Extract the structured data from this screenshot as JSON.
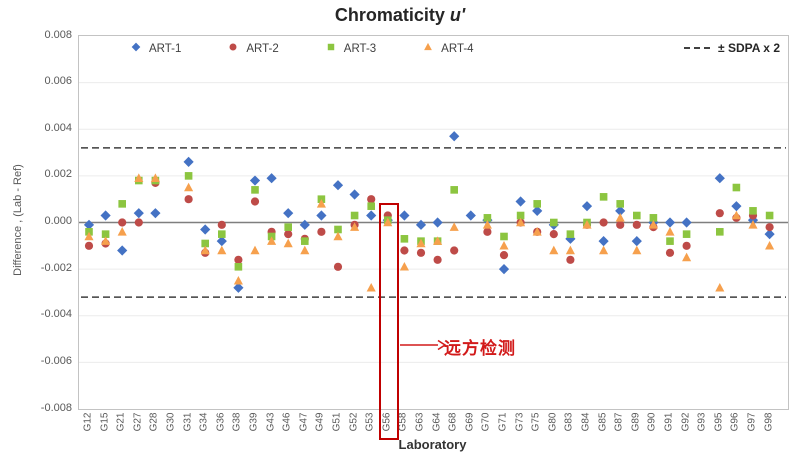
{
  "title": {
    "main": "Chromaticity",
    "suffix": "u'"
  },
  "legend": {
    "items": [
      {
        "label": "ART-1",
        "marker": "diamond",
        "color": "#4472C4"
      },
      {
        "label": "ART-2",
        "marker": "circle",
        "color": "#BE4B48"
      },
      {
        "label": "ART-3",
        "marker": "square",
        "color": "#8CC540"
      },
      {
        "label": "ART-4",
        "marker": "triangle",
        "color": "#F6A04D"
      }
    ],
    "sdpa_label": "± SDPA x 2"
  },
  "annotation": {
    "text": "远方检测",
    "highlighted_category": "G56",
    "text_color": "#D21A1A",
    "box_color": "#C00000"
  },
  "sdpa": {
    "value": 0.0032
  },
  "chart_data": {
    "type": "scatter",
    "title": "Chromaticity u'",
    "xlabel": "Laboratory",
    "ylabel": "Difference , (Lab - Ref)",
    "ylim": [
      -0.008,
      0.008
    ],
    "gridline_step": 0.002,
    "y_ticks": [
      "0.008",
      "0.006",
      "0.004",
      "0.002",
      "0.000",
      "-0.002",
      "-0.004",
      "-0.006",
      "-0.008"
    ],
    "reference_lines": {
      "zero": 0,
      "sdpa_upper": 0.0032,
      "sdpa_lower": -0.0032
    },
    "legend_position": "top-inside",
    "categories": [
      "G12",
      "G15",
      "G21",
      "G27",
      "G28",
      "G30",
      "G31",
      "G34",
      "G36",
      "G38",
      "G39",
      "G43",
      "G46",
      "G47",
      "G49",
      "G51",
      "G52",
      "G53",
      "G56",
      "G58",
      "G63",
      "G64",
      "G68",
      "G69",
      "G70",
      "G71",
      "G73",
      "G75",
      "G80",
      "G83",
      "G84",
      "G85",
      "G87",
      "G89",
      "G90",
      "G91",
      "G92",
      "G93",
      "G95",
      "G96",
      "G97",
      "G98"
    ],
    "series": [
      {
        "name": "ART-1",
        "marker": "diamond",
        "color": "#4472C4",
        "values": [
          -0.0001,
          0.0003,
          -0.0012,
          0.0004,
          0.0004,
          null,
          0.0026,
          -0.0003,
          -0.0008,
          -0.0028,
          0.0018,
          0.0019,
          0.0004,
          -0.0001,
          0.0003,
          0.0016,
          0.0012,
          0.0003,
          0.0001,
          0.0003,
          -0.0001,
          0.0,
          0.0037,
          0.0003,
          0.0001,
          -0.002,
          0.0009,
          0.0005,
          -0.0001,
          -0.0007,
          0.0007,
          -0.0008,
          0.0005,
          -0.0008,
          0.0,
          0.0,
          0.0,
          null,
          0.0019,
          0.0007,
          0.0001,
          -0.0005
        ]
      },
      {
        "name": "ART-2",
        "marker": "circle",
        "color": "#BE4B48",
        "values": [
          -0.001,
          -0.0009,
          0.0,
          0.0,
          0.0017,
          null,
          0.001,
          -0.0013,
          -0.0001,
          -0.0016,
          0.0009,
          -0.0004,
          -0.0005,
          -0.0007,
          -0.0004,
          -0.0019,
          -0.0001,
          0.001,
          0.0003,
          -0.0012,
          -0.0013,
          -0.0016,
          -0.0012,
          null,
          -0.0004,
          -0.0014,
          0.0,
          -0.0004,
          -0.0005,
          -0.0016,
          -0.0001,
          0.0,
          -0.0001,
          -0.0001,
          -0.0002,
          -0.0013,
          -0.001,
          null,
          0.0004,
          0.0002,
          0.0003,
          -0.0002
        ]
      },
      {
        "name": "ART-3",
        "marker": "square",
        "color": "#8CC540",
        "values": [
          -0.0004,
          -0.0005,
          0.0008,
          0.0018,
          0.0018,
          null,
          0.002,
          -0.0009,
          -0.0005,
          -0.0019,
          0.0014,
          -0.0006,
          -0.0002,
          -0.0008,
          0.001,
          -0.0003,
          0.0003,
          0.0007,
          0.0001,
          -0.0007,
          -0.0008,
          -0.0008,
          0.0014,
          null,
          0.0002,
          -0.0006,
          0.0003,
          0.0008,
          0.0,
          -0.0005,
          0.0,
          0.0011,
          0.0008,
          0.0003,
          0.0002,
          -0.0008,
          -0.0005,
          null,
          -0.0004,
          0.0015,
          0.0005,
          0.0003
        ]
      },
      {
        "name": "ART-4",
        "marker": "triangle",
        "color": "#F6A04D",
        "values": [
          -0.0006,
          -0.0008,
          -0.0004,
          0.0019,
          0.0019,
          null,
          0.0015,
          -0.0012,
          -0.0012,
          -0.0025,
          -0.0012,
          -0.0008,
          -0.0009,
          -0.0012,
          0.0008,
          -0.0006,
          -0.0002,
          -0.0028,
          0.0,
          -0.0019,
          -0.0009,
          -0.0008,
          -0.0002,
          null,
          -0.0001,
          -0.001,
          0.0,
          -0.0004,
          -0.0012,
          -0.0012,
          -0.0001,
          -0.0012,
          0.0002,
          -0.0012,
          -0.0001,
          -0.0004,
          -0.0015,
          null,
          -0.0028,
          0.0003,
          -0.0001,
          -0.001
        ]
      }
    ]
  }
}
